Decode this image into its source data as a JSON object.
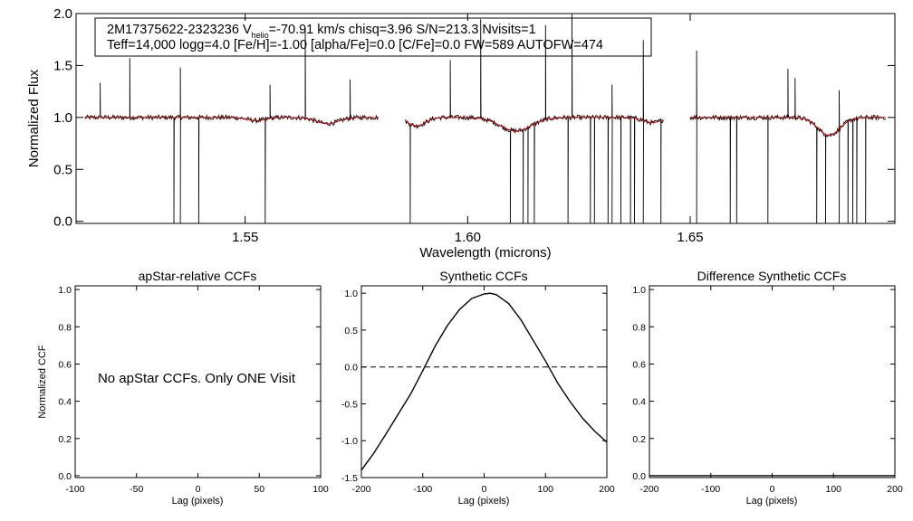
{
  "info": {
    "line1_prefix": "2M17375622-2323236  V",
    "line1_sub": "helio",
    "line1_suffix": "=-70.91 km/s  chisq=3.96  S/N=213.3  Nvisits=1",
    "line2": "Teff=14,000 logg=4.0 [Fe/H]=-1.00 [alpha/Fe]=0.0 [C/Fe]=0.0 FW=589 AUTOFW=474"
  },
  "colors": {
    "data": "#000000",
    "model": "#cc0000",
    "axes": "#000000"
  },
  "chart_data": [
    {
      "id": "spectrum",
      "type": "line",
      "xlabel": "Wavelength (microns)",
      "ylabel": "Normalized Flux",
      "xlim": [
        1.512,
        1.696
      ],
      "ylim": [
        -0.02,
        2.0
      ],
      "xticks": [
        1.55,
        1.6,
        1.65
      ],
      "xtick_labels": [
        "1.55",
        "1.60",
        "1.65"
      ],
      "yticks": [
        0,
        0.5,
        1.0,
        1.5,
        2.0
      ],
      "ytick_labels": [
        "0.0",
        "0.5",
        "1.0",
        "1.5",
        "2.0"
      ],
      "segments": [
        [
          1.514,
          1.58
        ],
        [
          1.586,
          1.644
        ],
        [
          1.65,
          1.694
        ]
      ],
      "absorption": [
        {
          "center": 1.5525,
          "depth": 0.03,
          "width": 0.002
        },
        {
          "center": 1.5685,
          "depth": 0.06,
          "width": 0.0025
        },
        {
          "center": 1.5885,
          "depth": 0.08,
          "width": 0.002
        },
        {
          "center": 1.6108,
          "depth": 0.13,
          "width": 0.0035
        },
        {
          "center": 1.6415,
          "depth": 0.05,
          "width": 0.002
        },
        {
          "center": 1.6812,
          "depth": 0.17,
          "width": 0.0025
        }
      ],
      "spikes_up": [
        1.5175,
        1.524,
        1.5355,
        1.5555,
        1.5635,
        1.5735,
        1.596,
        1.603,
        1.6175,
        1.6235,
        1.6325,
        1.6395,
        1.6515,
        1.672,
        1.6735,
        1.6835
      ],
      "spikes_down": [
        1.534,
        1.5355,
        1.5395,
        1.5545,
        1.587,
        1.6095,
        1.6125,
        1.6135,
        1.615,
        1.6225,
        1.6275,
        1.6285,
        1.6315,
        1.6325,
        1.6345,
        1.6365,
        1.6375,
        1.6395,
        1.6435,
        1.6515,
        1.659,
        1.6605,
        1.6605,
        1.6675,
        1.6785,
        1.6805,
        1.6835,
        1.6855,
        1.6865,
        1.6875,
        1.6895
      ]
    },
    {
      "id": "apstar-ccf",
      "type": "line",
      "title": "apStar-relative CCFs",
      "xlabel": "Lag (pixels)",
      "ylabel": "Normalized CCF",
      "xlim": [
        -100,
        100
      ],
      "ylim": [
        -0.01,
        1.02
      ],
      "xticks": [
        -100,
        -50,
        0,
        50,
        100
      ],
      "xtick_labels": [
        "-100",
        "-50",
        "0",
        "50",
        "100"
      ],
      "yticks": [
        0,
        0.2,
        0.4,
        0.6,
        0.8,
        1.0
      ],
      "ytick_labels": [
        "0.0",
        "0.2",
        "0.4",
        "0.6",
        "0.8",
        "1.0"
      ],
      "note": "No apStar CCFs.  Only ONE Visit"
    },
    {
      "id": "synthetic-ccf",
      "type": "line",
      "title": "Synthetic CCFs",
      "xlabel": "Lag (pixels)",
      "xlim": [
        -200,
        200
      ],
      "ylim": [
        -1.5,
        1.1
      ],
      "xticks": [
        -200,
        -100,
        0,
        100,
        200
      ],
      "xtick_labels": [
        "-200",
        "-100",
        "0",
        "100",
        "200"
      ],
      "yticks": [
        -1.5,
        -1.0,
        -0.5,
        0.0,
        0.5,
        1.0
      ],
      "ytick_labels": [
        "-1.5",
        "-1.0",
        "-0.5",
        "0.0",
        "0.5",
        "1.0"
      ],
      "zero_line": 0.0,
      "x": [
        -200,
        -180,
        -160,
        -140,
        -120,
        -100,
        -80,
        -60,
        -40,
        -20,
        0,
        10,
        20,
        40,
        60,
        80,
        100,
        120,
        140,
        160,
        180,
        200
      ],
      "y": [
        -1.4,
        -1.17,
        -0.91,
        -0.64,
        -0.37,
        -0.05,
        0.28,
        0.56,
        0.78,
        0.93,
        0.99,
        1.0,
        0.98,
        0.86,
        0.64,
        0.36,
        0.08,
        -0.22,
        -0.47,
        -0.69,
        -0.87,
        -1.02
      ]
    },
    {
      "id": "difference-ccf",
      "type": "line",
      "title": "Difference Synthetic CCFs",
      "xlabel": "Lag (pixels)",
      "xlim": [
        -200,
        200
      ],
      "ylim": [
        -0.01,
        1.02
      ],
      "xticks": [
        -200,
        -100,
        0,
        100,
        200
      ],
      "xtick_labels": [
        "-200",
        "-100",
        "0",
        "100",
        "200"
      ],
      "yticks": [
        0,
        0.2,
        0.4,
        0.6,
        0.8,
        1.0
      ],
      "ytick_labels": [
        "0.0",
        "0.2",
        "0.4",
        "0.6",
        "0.8",
        "1.0"
      ],
      "x": [
        -200,
        200
      ],
      "y": [
        0,
        0
      ]
    }
  ]
}
